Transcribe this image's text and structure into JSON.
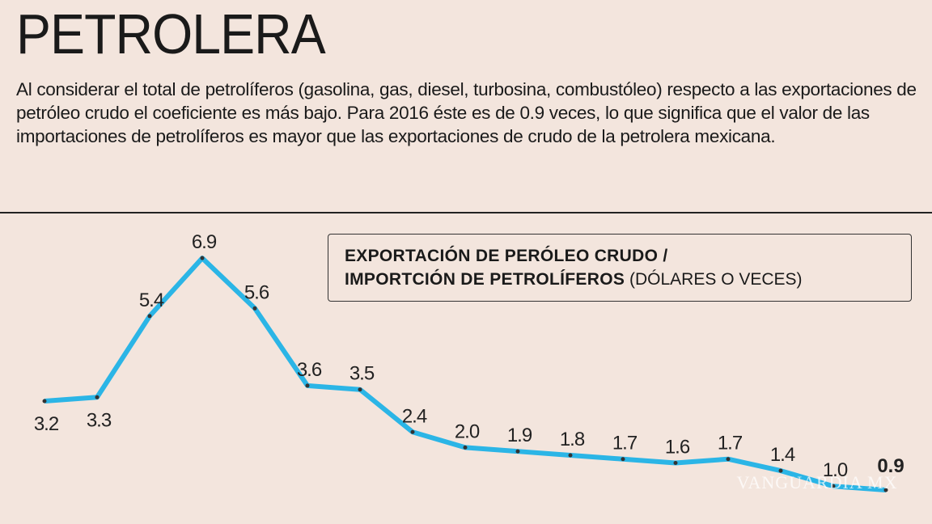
{
  "chart_data": {
    "type": "line",
    "title": "PETROLERA",
    "description": "Al considerar el total de petrolíferos (gasolina, gas, diesel, turbosina, combustóleo) respecto a las exportaciones de petróleo crudo el coeficiente es más bajo. Para 2016 éste es de 0.9 veces, lo que significa que el valor de las importaciones de petrolíferos es mayor que las exportaciones de crudo de la petrolera mexicana.",
    "legend_line1": "EXPORTACIÓN DE PERÓLEO CRUDO /",
    "legend_line2_bold": "IMPORTCIÓN DE PETROLÍFEROS",
    "legend_line2_unit": "(DÓLARES O VECES)",
    "values": [
      3.2,
      3.3,
      5.4,
      6.9,
      5.6,
      3.6,
      3.5,
      2.4,
      2.0,
      1.9,
      1.8,
      1.7,
      1.6,
      1.7,
      1.4,
      1.0,
      0.9
    ],
    "value_labels": [
      "3.2",
      "3.3",
      "5.4",
      "6.9",
      "5.6",
      "3.6",
      "3.5",
      "2.4",
      "2.0",
      "1.9",
      "1.8",
      "1.7",
      "1.6",
      "1.7",
      "1.4",
      "1.0",
      "0.9"
    ],
    "color": "#2bb5e6",
    "watermark": "VANGUARDIA MX"
  }
}
